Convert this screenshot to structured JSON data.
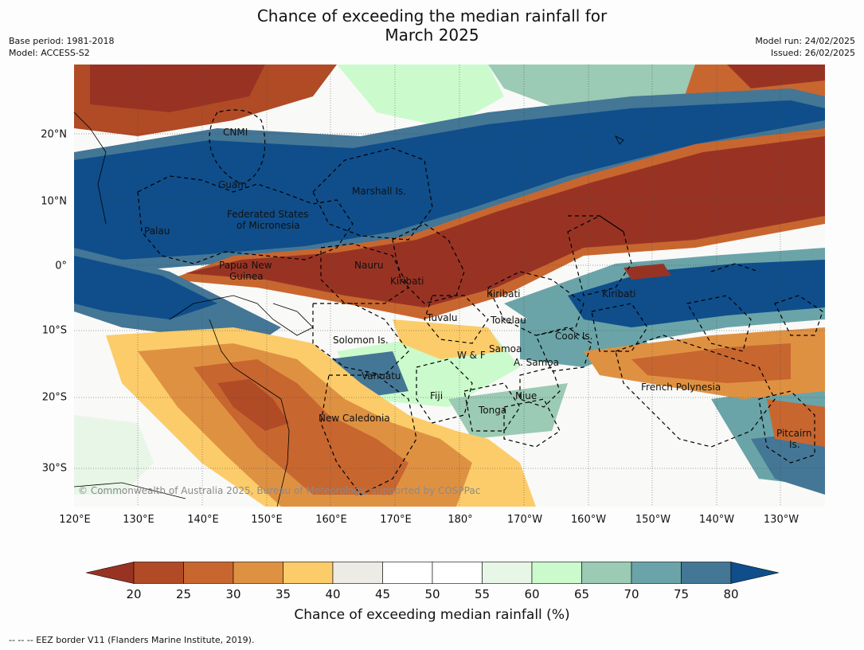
{
  "title_line1": "Chance of exceeding the median rainfall for",
  "title_line2": "March 2025",
  "base_period": "Base period: 1981-2018",
  "model": "Model: ACCESS-S2",
  "model_run": "Model run: 24/02/2025",
  "issued": "Issued: 26/02/2025",
  "lon_labels": [
    "120°E",
    "130°E",
    "140°E",
    "150°E",
    "160°E",
    "170°E",
    "180°",
    "170°W",
    "160°W",
    "150°W",
    "140°W",
    "130°W"
  ],
  "lat_labels": [
    "20°N",
    "10°N",
    "0°",
    "10°S",
    "20°S",
    "30°S"
  ],
  "places": {
    "cnmi": "CNMI",
    "guam": "Guam",
    "marshall": "Marshall Is.",
    "fsm1": "Federated States",
    "fsm2": "of Micronesia",
    "palau": "Palau",
    "png1": "Papua New",
    "png2": "Guinea",
    "nauru": "Nauru",
    "kiribati_w": "Kiribati",
    "kiribati_c": "Kiribati",
    "kiribati_e": "Kiribati",
    "tuvalu": "Tuvalu",
    "tokelau": "Tokelau",
    "cook": "Cook Is.",
    "solomon": "Solomon Is.",
    "samoa": "Samoa",
    "wf": "W & F",
    "asamoa": "A. Samoa",
    "vanuatu": "Vanuatu",
    "fiji": "Fiji",
    "niue": "Niue",
    "tonga": "Tonga",
    "newcal": "New Caledonia",
    "frpoly": "French Polynesia",
    "pitcairn1": "Pitcairn",
    "pitcairn2": "Is."
  },
  "copyright": "© Commonwealth of Australia 2025, Bureau of Meteorology, supported by COSPPac",
  "colorbar": {
    "label": "Chance of exceeding median rainfall (%)",
    "ticks": [
      "20",
      "25",
      "30",
      "35",
      "40",
      "45",
      "50",
      "55",
      "60",
      "65",
      "70",
      "75",
      "80"
    ],
    "colors": [
      "#983324",
      "#b04b26",
      "#c8662f",
      "#df9142",
      "#fccc6a",
      "#ecebe6",
      "#ffffff",
      "#ffffff",
      "#e8f6e8",
      "#cbfbcc",
      "#9bcab5",
      "#6aa4a8",
      "#447696",
      "#0f4e8b"
    ]
  },
  "footer": "--  --  -- EEZ border V11 (Flanders Marine Institute, 2019)."
}
